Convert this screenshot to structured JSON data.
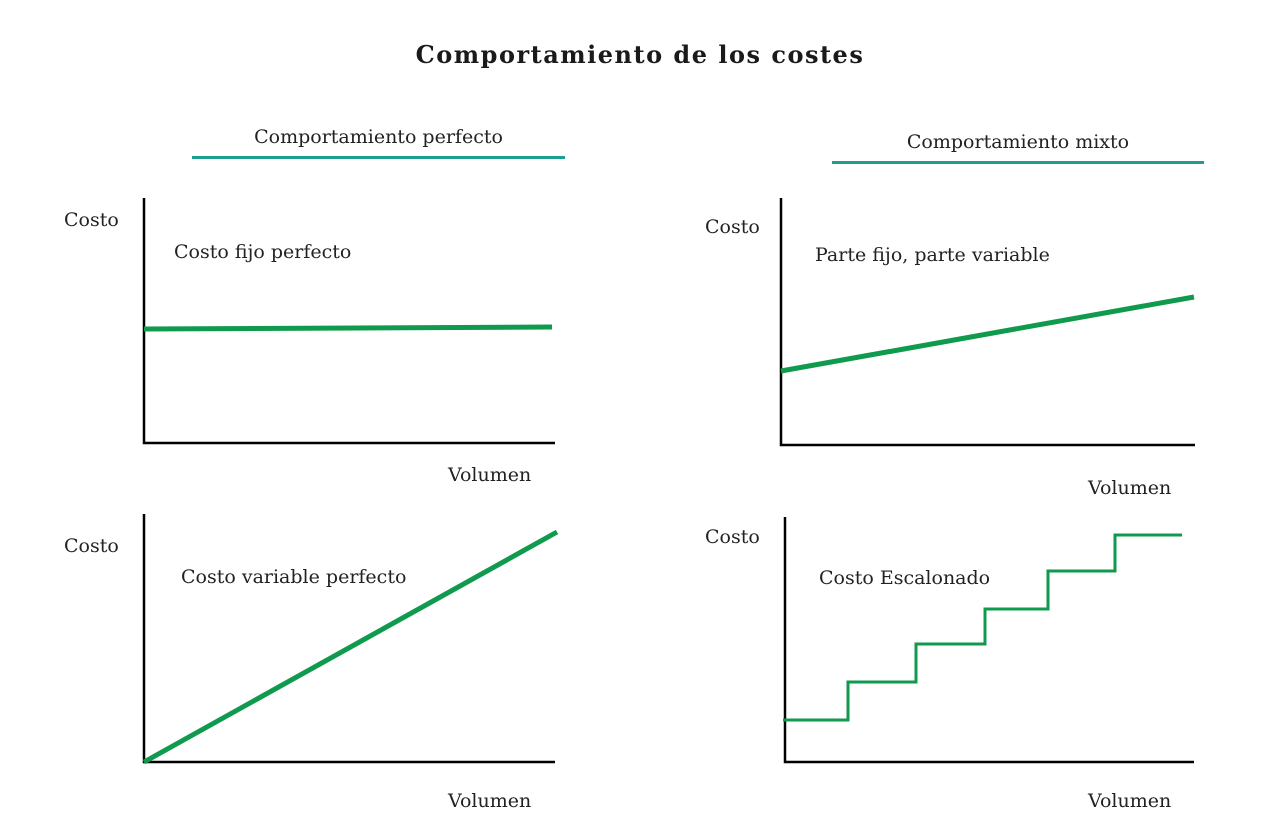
{
  "title": "Comportamiento de los costes",
  "colors": {
    "line": "#0f9a4e",
    "rule": "#1e9d93",
    "axis": "#000000"
  },
  "sections": {
    "left": {
      "heading": "Comportamiento perfecto"
    },
    "right": {
      "heading": "Comportamiento mixto"
    }
  },
  "panels": {
    "fixed": {
      "y_label": "Costo",
      "x_label": "Volumen",
      "caption": "Costo fijo perfecto"
    },
    "mixed": {
      "y_label": "Costo",
      "x_label": "Volumen",
      "caption": "Parte fijo, parte variable"
    },
    "variable": {
      "y_label": "Costo",
      "x_label": "Volumen",
      "caption": "Costo variable perfecto"
    },
    "stepped": {
      "y_label": "Costo",
      "x_label": "Volumen",
      "caption": "Costo Escalonado"
    }
  }
}
